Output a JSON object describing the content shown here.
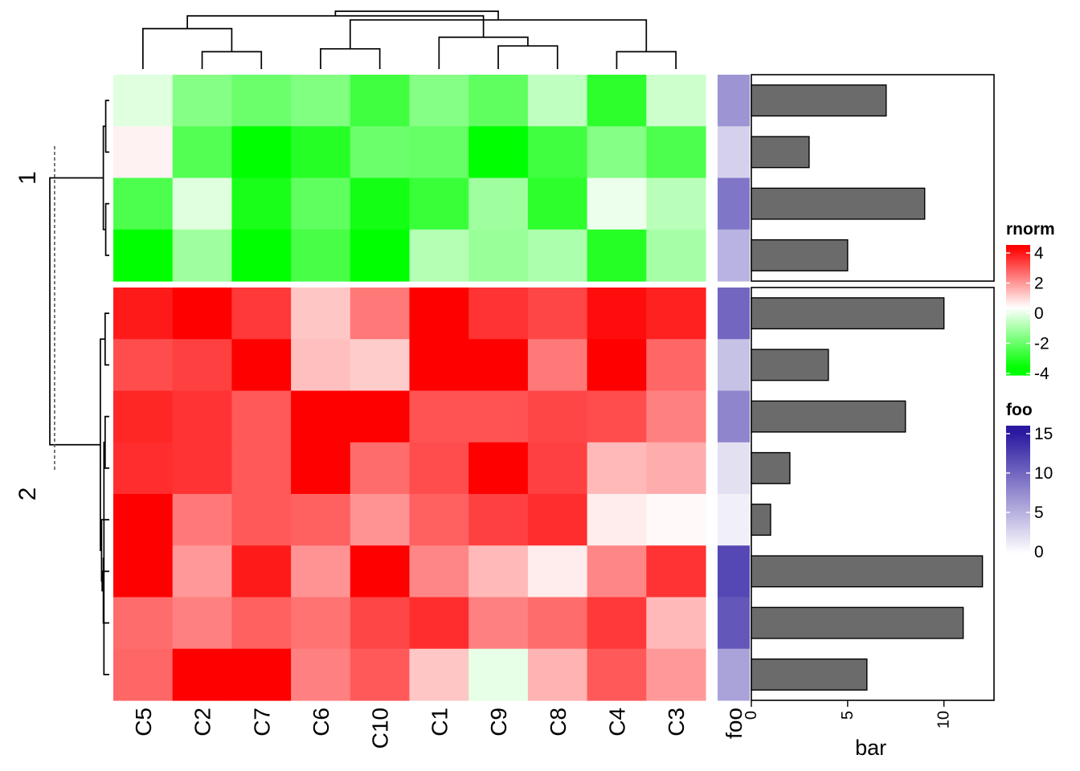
{
  "chart_data": {
    "type": "heatmap",
    "columns": [
      "C5",
      "C2",
      "C7",
      "C6",
      "C10",
      "C1",
      "C9",
      "C8",
      "C4",
      "C3"
    ],
    "row_slices": [
      {
        "label": "1",
        "rows": 4
      },
      {
        "label": "2",
        "rows": 8
      }
    ],
    "values": [
      [
        -0.5,
        -1.9,
        -2.3,
        -2.0,
        -3.0,
        -1.9,
        -2.5,
        -1.0,
        -3.3,
        -0.8
      ],
      [
        0.2,
        -2.7,
        -4.2,
        -3.4,
        -2.3,
        -2.4,
        -4.5,
        -3.0,
        -1.9,
        -2.8
      ],
      [
        -2.8,
        -0.5,
        -3.6,
        -2.5,
        -3.7,
        -3.1,
        -1.5,
        -3.3,
        -0.3,
        -1.1
      ],
      [
        -4.3,
        -1.5,
        -4.4,
        -2.9,
        -4.2,
        -1.2,
        -1.6,
        -1.3,
        -3.4,
        -1.4
      ],
      [
        3.6,
        4.0,
        3.1,
        0.9,
        2.1,
        4.0,
        3.2,
        2.9,
        3.8,
        3.5
      ],
      [
        2.8,
        3.0,
        4.0,
        1.0,
        0.8,
        4.0,
        4.0,
        2.1,
        4.0,
        2.4
      ],
      [
        3.4,
        3.2,
        2.6,
        4.0,
        4.0,
        2.7,
        2.7,
        2.9,
        2.8,
        2.0
      ],
      [
        3.3,
        3.2,
        2.6,
        4.0,
        2.3,
        2.8,
        4.0,
        3.0,
        1.1,
        1.3
      ],
      [
        4.0,
        2.1,
        2.6,
        2.5,
        1.7,
        2.5,
        3.0,
        3.3,
        0.3,
        0.1
      ],
      [
        4.0,
        1.6,
        3.6,
        1.7,
        4.0,
        1.9,
        1.1,
        0.3,
        1.9,
        3.2
      ],
      [
        2.3,
        2.0,
        2.5,
        2.2,
        2.9,
        3.3,
        2.0,
        2.3,
        3.1,
        1.1
      ],
      [
        2.4,
        4.0,
        4.0,
        2.0,
        2.6,
        0.9,
        -0.4,
        1.2,
        2.6,
        1.6
      ]
    ],
    "color_scale": {
      "title": "rnorm",
      "breaks": [
        -4,
        0,
        4
      ],
      "colors": [
        "#00ff00",
        "#ffffff",
        "#ff0000"
      ],
      "tick_labels": [
        "4",
        "2",
        "0",
        "-2",
        "-4"
      ],
      "tick_values": [
        4,
        2,
        0,
        -2,
        -4
      ]
    },
    "foo": {
      "title": "foo",
      "values": [
        7,
        3,
        9,
        5,
        10,
        4,
        8,
        2,
        1,
        12,
        11,
        6
      ],
      "range": [
        0,
        15
      ],
      "colors": [
        "#ffffff",
        "#2b1aa1"
      ],
      "tick_labels": [
        "15",
        "10",
        "5",
        "0"
      ],
      "tick_values": [
        15,
        10,
        5,
        0
      ],
      "column_label": "foo"
    },
    "bar": {
      "xlabel": "bar",
      "values": [
        7,
        3,
        9,
        5,
        10,
        4,
        8,
        2,
        1,
        12,
        11,
        6
      ],
      "xlim": [
        0,
        12.6
      ],
      "ticks": [
        0,
        5,
        10
      ],
      "tick_labels": [
        "0",
        "5",
        "10"
      ],
      "bar_color": "#6b6b6b"
    },
    "column_dendrogram": {
      "merges": [
        [
          1,
          2
        ],
        [
          8,
          9
        ],
        [
          3,
          4
        ],
        [
          6,
          7
        ],
        [
          5,
          -4
        ],
        [
          0,
          -1
        ],
        [
          -2,
          -3
        ],
        [
          -5,
          -6
        ],
        [
          -7,
          -8
        ]
      ],
      "heights": [
        0.3,
        0.3,
        0.35,
        0.4,
        0.55,
        0.7,
        0.85,
        0.92,
        1.0
      ]
    },
    "row_dendrogram": {
      "merges": [
        [
          0,
          1
        ],
        [
          2,
          3
        ],
        [
          -1,
          -2
        ],
        [
          6,
          7
        ],
        [
          4,
          5
        ],
        [
          11,
          -4
        ],
        [
          10,
          -6
        ],
        [
          9,
          -7
        ],
        [
          8,
          -8
        ],
        [
          -5,
          -9
        ],
        [
          -3,
          -10
        ]
      ],
      "heights": [
        0.06,
        0.06,
        0.1,
        0.07,
        0.07,
        0.09,
        0.1,
        0.12,
        0.13,
        0.15,
        1.0
      ],
      "cut_height": 0.92
    }
  }
}
